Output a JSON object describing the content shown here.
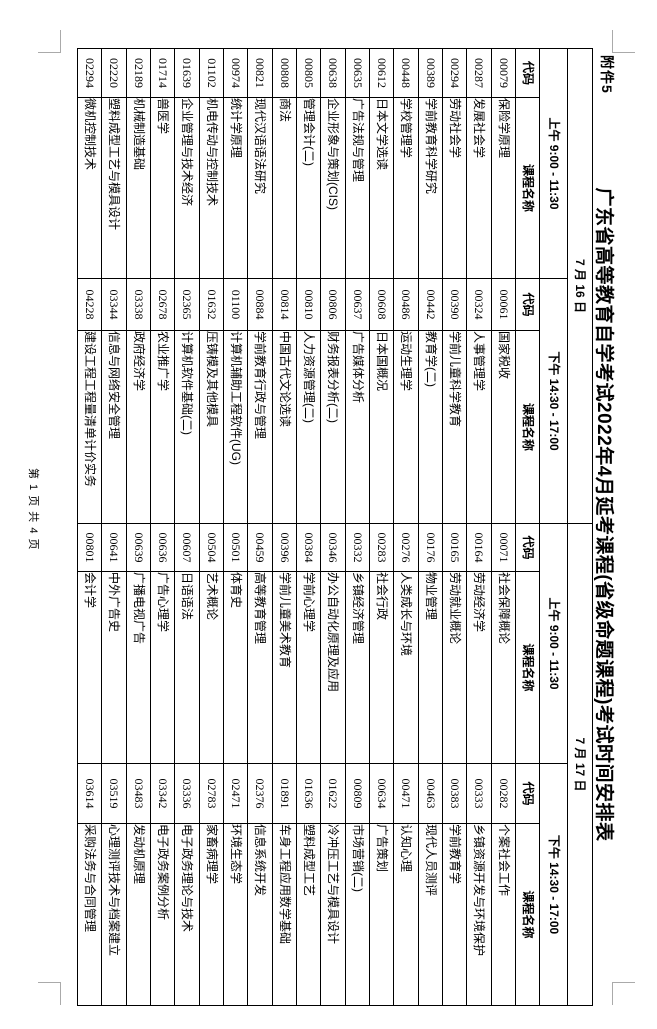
{
  "page": {
    "attachment_label": "附件5",
    "title": "广东省高等教育自学考试2022年4月延考课程(省级命题课程)考试时间安排表",
    "footer": "第 1 页 共 4 页"
  },
  "table": {
    "code_header": "代码",
    "name_header": "课程名称",
    "days": [
      {
        "date": "7 月 16 日",
        "sessions": [
          {
            "time": "上午 9:00 - 11:30",
            "courses": [
              {
                "code": "00079",
                "name": "保险学原理"
              },
              {
                "code": "00287",
                "name": "发展社会学"
              },
              {
                "code": "00294",
                "name": "劳动社会学"
              },
              {
                "code": "00389",
                "name": "学前教育科学研究"
              },
              {
                "code": "00448",
                "name": "学校管理学"
              },
              {
                "code": "00612",
                "name": "日本文学选读"
              },
              {
                "code": "00635",
                "name": "广告法规与管理"
              },
              {
                "code": "00638",
                "name": "企业形象与策划(CIS)"
              },
              {
                "code": "00805",
                "name": "管理会计(二)"
              },
              {
                "code": "00808",
                "name": "商法"
              },
              {
                "code": "00821",
                "name": "现代汉语语法研究"
              },
              {
                "code": "00974",
                "name": "统计学原理"
              },
              {
                "code": "01102",
                "name": "机电传动与控制技术"
              },
              {
                "code": "01639",
                "name": "企业管理与技术经济"
              },
              {
                "code": "01714",
                "name": "兽医学"
              },
              {
                "code": "02189",
                "name": "机械制造基础"
              },
              {
                "code": "02220",
                "name": "塑料成型工艺与模具设计"
              },
              {
                "code": "02294",
                "name": "微机控制技术"
              }
            ]
          },
          {
            "time": "下午 14:30 - 17:00",
            "courses": [
              {
                "code": "00061",
                "name": "国家税收"
              },
              {
                "code": "00324",
                "name": "人事管理学"
              },
              {
                "code": "00390",
                "name": "学前儿童科学教育"
              },
              {
                "code": "00442",
                "name": "教育学(二)"
              },
              {
                "code": "00486",
                "name": "运动生理学"
              },
              {
                "code": "00608",
                "name": "日本国概况"
              },
              {
                "code": "00637",
                "name": "广告媒体分析"
              },
              {
                "code": "00806",
                "name": "财务报表分析(二)"
              },
              {
                "code": "00810",
                "name": "人力资源管理(二)"
              },
              {
                "code": "00814",
                "name": "中国古代文论选读"
              },
              {
                "code": "00884",
                "name": "学前教育行政与管理"
              },
              {
                "code": "01100",
                "name": "计算机辅助工程软件(UG)"
              },
              {
                "code": "01632",
                "name": "压铸模及其他模具"
              },
              {
                "code": "02365",
                "name": "计算机软件基础(二)"
              },
              {
                "code": "02678",
                "name": "农业推广学"
              },
              {
                "code": "03338",
                "name": "政府经济学"
              },
              {
                "code": "03344",
                "name": "信息与网络安全管理"
              },
              {
                "code": "04228",
                "name": "建设工程工程量清单计价实务"
              }
            ]
          }
        ]
      },
      {
        "date": "7 月 17 日",
        "sessions": [
          {
            "time": "上午 9:00 - 11:30",
            "courses": [
              {
                "code": "00071",
                "name": "社会保障概论"
              },
              {
                "code": "00164",
                "name": "劳动经济学"
              },
              {
                "code": "00165",
                "name": "劳动就业概论"
              },
              {
                "code": "00176",
                "name": "物业管理"
              },
              {
                "code": "00276",
                "name": "人类成长与环境"
              },
              {
                "code": "00283",
                "name": "社会行政"
              },
              {
                "code": "00332",
                "name": "乡镇经济管理"
              },
              {
                "code": "00346",
                "name": "办公自动化原理及应用"
              },
              {
                "code": "00384",
                "name": "学前心理学"
              },
              {
                "code": "00396",
                "name": "学前儿童美术教育"
              },
              {
                "code": "00459",
                "name": "高等教育管理"
              },
              {
                "code": "00501",
                "name": "体育史"
              },
              {
                "code": "00504",
                "name": "艺术概论"
              },
              {
                "code": "00607",
                "name": "日语语法"
              },
              {
                "code": "00636",
                "name": "广告心理学"
              },
              {
                "code": "00639",
                "name": "广播电视广告"
              },
              {
                "code": "00641",
                "name": "中外广告史"
              },
              {
                "code": "00801",
                "name": "会计学"
              }
            ]
          },
          {
            "time": "下午 14:30 - 17:00",
            "courses": [
              {
                "code": "00282",
                "name": "个案社会工作"
              },
              {
                "code": "00333",
                "name": "乡镇资源开发与环境保护"
              },
              {
                "code": "00383",
                "name": "学前教育学"
              },
              {
                "code": "00463",
                "name": "现代人员测评"
              },
              {
                "code": "00471",
                "name": "认知心理"
              },
              {
                "code": "00634",
                "name": "广告策划"
              },
              {
                "code": "00809",
                "name": "市场营销(二)"
              },
              {
                "code": "01622",
                "name": "冷冲压工艺与模具设计"
              },
              {
                "code": "01636",
                "name": "塑料成型工艺"
              },
              {
                "code": "01891",
                "name": "车身工程应用数学基础"
              },
              {
                "code": "02376",
                "name": "信息系统开发"
              },
              {
                "code": "02471",
                "name": "环境生态学"
              },
              {
                "code": "02783",
                "name": "家畜病理学"
              },
              {
                "code": "03336",
                "name": "电子政务理论与技术"
              },
              {
                "code": "03342",
                "name": "电子政务案例分析"
              },
              {
                "code": "03483",
                "name": "发动机原理"
              },
              {
                "code": "03519",
                "name": "心理测评技术与档案建立"
              },
              {
                "code": "03614",
                "name": "采购法务与合同管理"
              }
            ]
          }
        ]
      }
    ]
  }
}
